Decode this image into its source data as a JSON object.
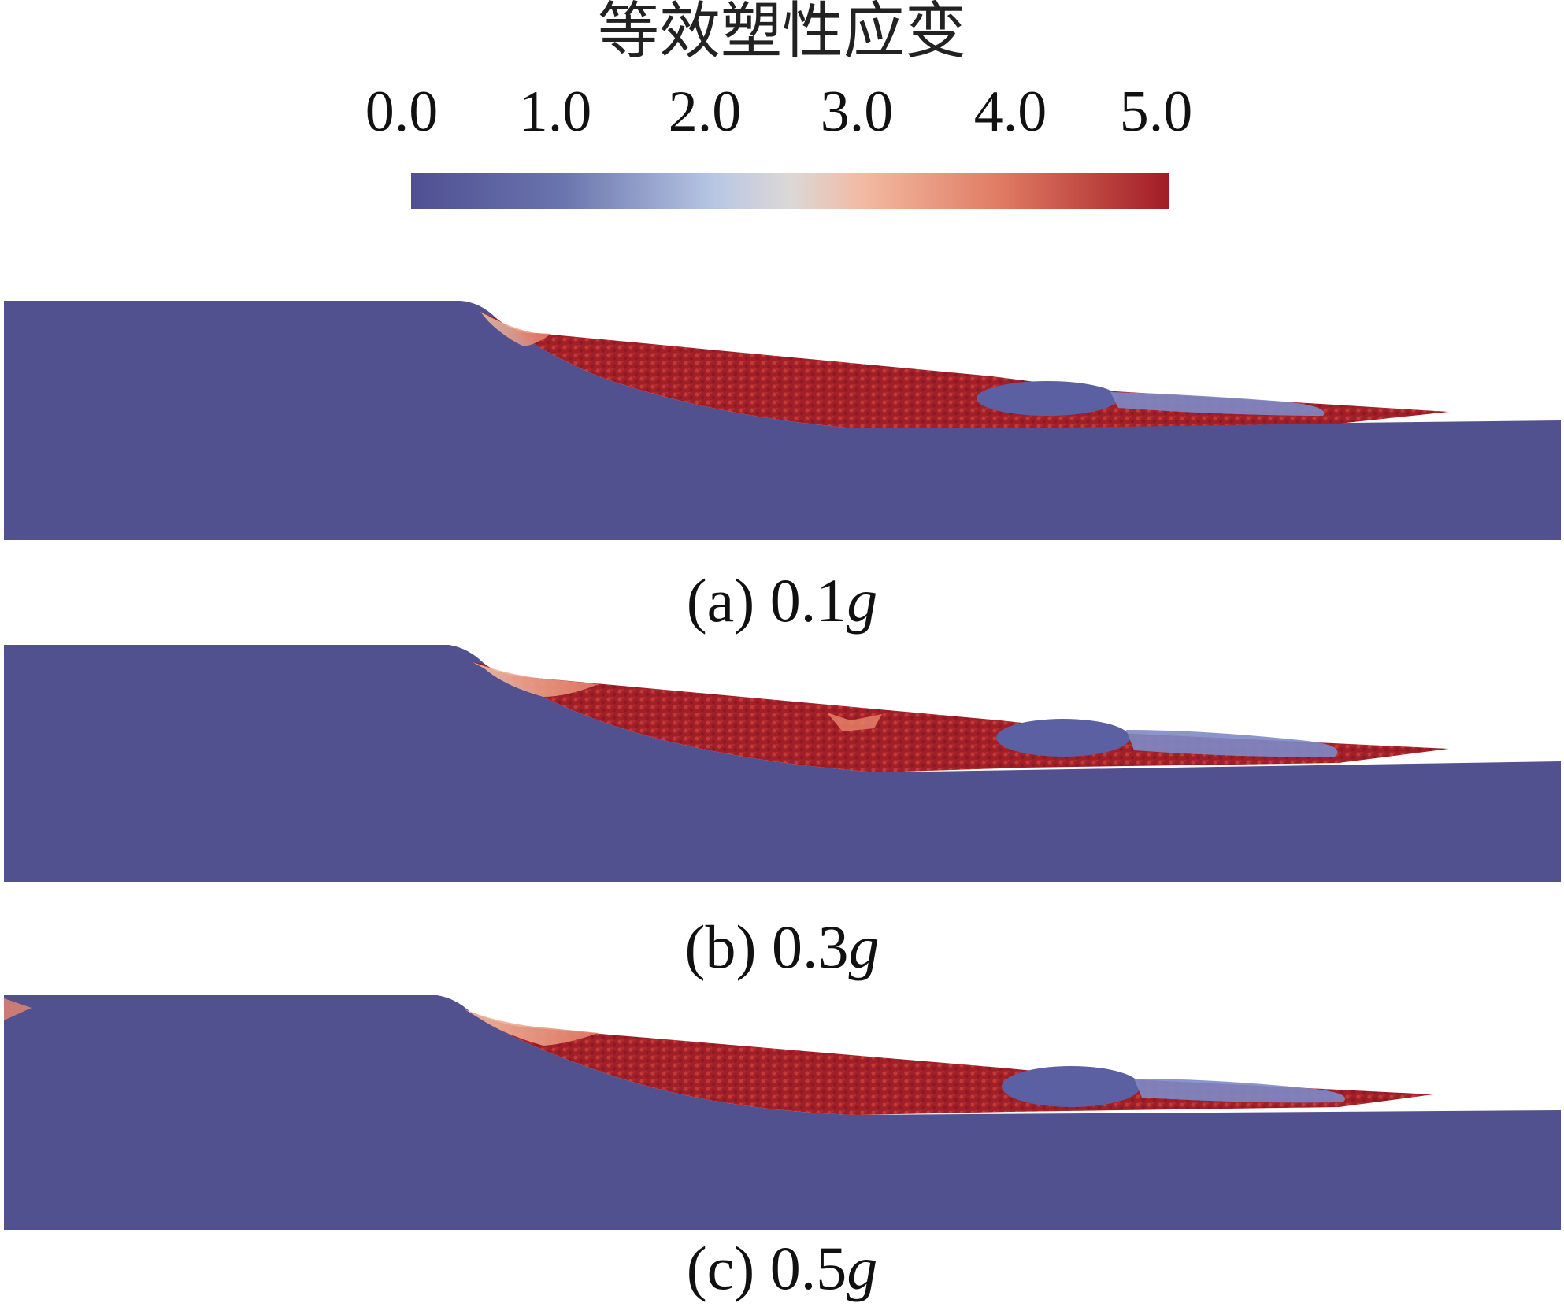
{
  "colorbar": {
    "title": "等效塑性应变",
    "ticks": [
      "0.0",
      "1.0",
      "2.0",
      "3.0",
      "4.0",
      "5.0"
    ],
    "min": 0.0,
    "max": 5.0,
    "colors": [
      "#4f4f93",
      "#b8c6e4",
      "#dcd8d6",
      "#e07a62",
      "#a11c26"
    ]
  },
  "panels": [
    {
      "label": "(a) 0.1",
      "unit": "g"
    },
    {
      "label": "(b) 0.3",
      "unit": "g"
    },
    {
      "label": "(c) 0.5",
      "unit": "g"
    }
  ],
  "colors": {
    "background_soil": "#52518f",
    "high_strain": "#a4212a",
    "transition": "#e8866c",
    "low_strain_bubble": "#6b78b6"
  }
}
